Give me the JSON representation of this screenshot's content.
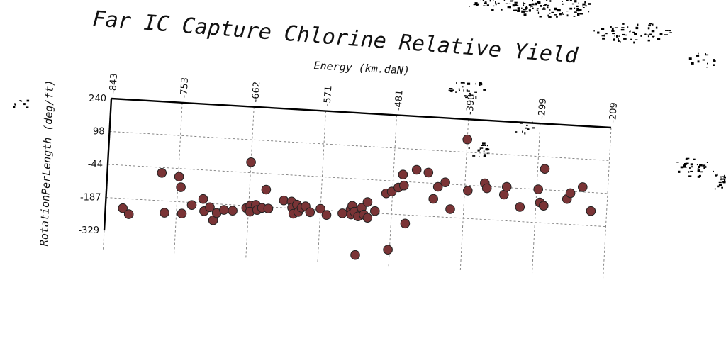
{
  "chart_data": {
    "type": "scatter",
    "title": "Far IC Capture Chlorine Relative Yield",
    "xlabel": "Energy (km.daN)",
    "ylabel": "RotationPerLength (deg/ft)",
    "xlim": [
      -843,
      -209
    ],
    "ylim": [
      -329,
      240
    ],
    "x_ticks": [
      "-843",
      "-753",
      "-662",
      "-571",
      "-481",
      "-390",
      "-299",
      "-209"
    ],
    "y_ticks": [
      "240",
      "98",
      "-44",
      "-187",
      "-329"
    ],
    "x_axis_position": "top",
    "grid": true,
    "point_color": "#7a3436",
    "points": [
      [
        -821,
        -229
      ],
      [
        -813,
        -253
      ],
      [
        -774,
        -67
      ],
      [
        -768,
        -238
      ],
      [
        -752,
        -79
      ],
      [
        -749,
        -124
      ],
      [
        -746,
        -237
      ],
      [
        -734,
        -198
      ],
      [
        -720,
        -169
      ],
      [
        -718,
        -221
      ],
      [
        -711,
        -203
      ],
      [
        -706,
        -258
      ],
      [
        -702,
        -226
      ],
      [
        -693,
        -211
      ],
      [
        -682,
        -212
      ],
      [
        -665,
        -197
      ],
      [
        -662,
        1
      ],
      [
        -660,
        -186
      ],
      [
        -660,
        -212
      ],
      [
        -653,
        -181
      ],
      [
        -651,
        -203
      ],
      [
        -645,
        -193
      ],
      [
        -641,
        -113
      ],
      [
        -637,
        -194
      ],
      [
        -618,
        -155
      ],
      [
        -608,
        -158
      ],
      [
        -607,
        -184
      ],
      [
        -605,
        -210
      ],
      [
        -601,
        -170
      ],
      [
        -599,
        -201
      ],
      [
        -595,
        -182
      ],
      [
        -590,
        -175
      ],
      [
        -584,
        -199
      ],
      [
        -571,
        -182
      ],
      [
        -563,
        -207
      ],
      [
        -543,
        -196
      ],
      [
        -533,
        -178
      ],
      [
        -532,
        -199
      ],
      [
        -531,
        -161
      ],
      [
        -528,
        -186
      ],
      [
        -524,
        -372
      ],
      [
        -523,
        -205
      ],
      [
        -519,
        -168
      ],
      [
        -516,
        -196
      ],
      [
        -512,
        -141
      ],
      [
        -511,
        -209
      ],
      [
        -502,
        -178
      ],
      [
        -489,
        -99
      ],
      [
        -483,
        -341
      ],
      [
        -482,
        -90
      ],
      [
        -474,
        -71
      ],
      [
        -469,
        -14
      ],
      [
        -467,
        -61
      ],
      [
        -463,
        -224
      ],
      [
        -452,
        10
      ],
      [
        -437,
        1
      ],
      [
        -429,
        -111
      ],
      [
        -424,
        -58
      ],
      [
        -415,
        -37
      ],
      [
        -407,
        -151
      ],
      [
        -390,
        153
      ],
      [
        -386,
        -67
      ],
      [
        -365,
        -31
      ],
      [
        -362,
        -52
      ],
      [
        -340,
        -75
      ],
      [
        -337,
        -41
      ],
      [
        -319,
        -124
      ],
      [
        -297,
        -44
      ],
      [
        -294,
        -100
      ],
      [
        -290,
        46
      ],
      [
        -289,
        -113
      ],
      [
        -260,
        -78
      ],
      [
        -256,
        -52
      ],
      [
        -241,
        -23
      ],
      [
        -229,
        -124
      ]
    ]
  },
  "colors": {
    "background": "#ffffff",
    "point_fill": "#7a3436",
    "frame": "#000000",
    "grid": "#7a7a7a"
  }
}
